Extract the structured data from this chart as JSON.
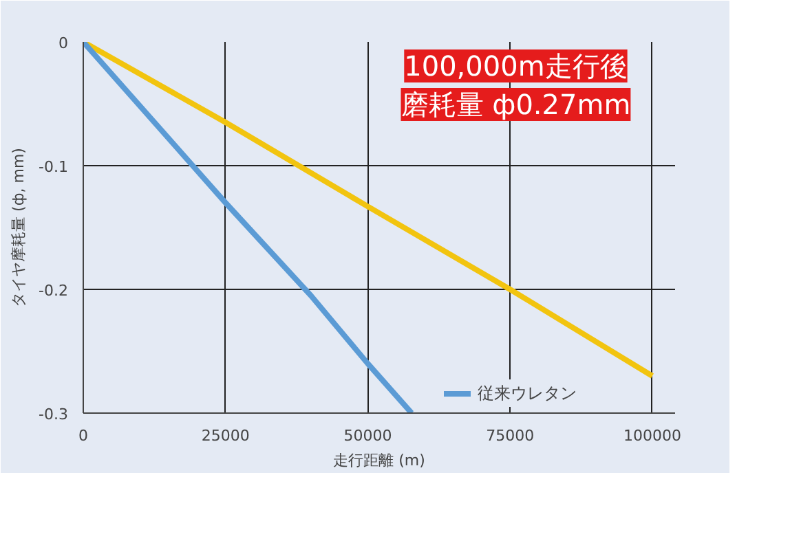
{
  "chart_data": {
    "type": "line",
    "xlabel": "走行距離 (m)",
    "ylabel": "タイヤ摩耗量 (ф, mm)",
    "annotations": [
      "100,000m走行後",
      "磨耗量 ф0.27mm"
    ],
    "series": [
      {
        "color": "#f2c40f",
        "x": [
          0,
          25000,
          50000,
          75000,
          100000
        ],
        "values": [
          0,
          -0.065,
          -0.133,
          -0.2,
          -0.27
        ]
      },
      {
        "name": "従来ウレタン",
        "color": "#5b9bd5",
        "x": [
          0,
          25000,
          40000,
          50000,
          57700
        ],
        "values": [
          0,
          -0.13,
          -0.205,
          -0.26,
          -0.3
        ]
      }
    ],
    "xlim": [
      0,
      104000
    ],
    "ylim": [
      -0.3,
      0
    ],
    "xticks": [
      0,
      25000,
      50000,
      75000,
      100000
    ],
    "yticks": [
      -0.3,
      -0.2,
      -0.1,
      0
    ],
    "grid": true,
    "legend": "bottom"
  }
}
